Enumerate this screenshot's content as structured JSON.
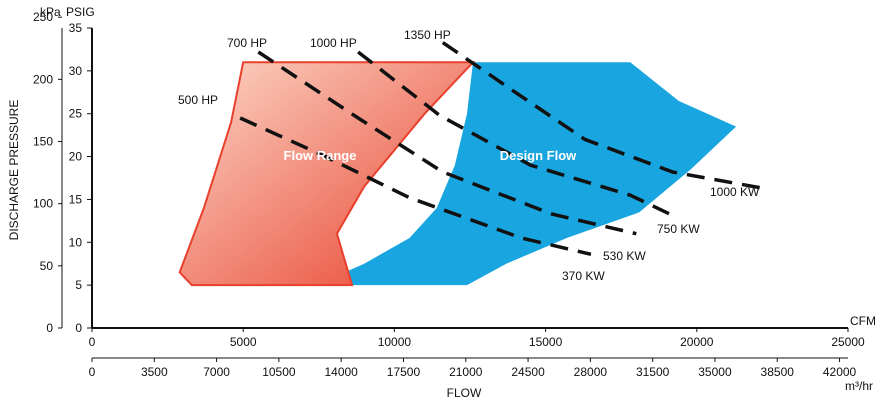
{
  "chart_data": {
    "type": "area",
    "title": "",
    "xlabel": "FLOW",
    "ylabel": "DISCHARGE PRESSURE",
    "x_units_primary": "CFM",
    "x_units_secondary": "m³/hr",
    "y_units_primary": "PSIG",
    "y_units_secondary": "kPa",
    "xlim": [
      0,
      25000
    ],
    "ylim": [
      0,
      35
    ],
    "x_ticks_cfm": [
      "0",
      "5000",
      "10000",
      "15000",
      "20000",
      "25000"
    ],
    "x_ticks_m3hr": [
      "0",
      "3500",
      "7000",
      "10500",
      "14000",
      "17500",
      "21000",
      "24500",
      "28000",
      "31500",
      "35000",
      "38500",
      "42000"
    ],
    "y_ticks_psig": [
      "0",
      "5",
      "10",
      "15",
      "20",
      "25",
      "30",
      "35"
    ],
    "y_ticks_kpa": [
      "0",
      "50",
      "100",
      "150",
      "200",
      "250"
    ],
    "grid": false,
    "regions": [
      {
        "label": "Flow Range",
        "color_light": "#fcd7c8",
        "color_dark": "#e8402c",
        "outline": [
          [
            5000,
            31
          ],
          [
            12600,
            31
          ],
          [
            11000,
            25
          ],
          [
            9000,
            16.5
          ],
          [
            8100,
            11
          ],
          [
            8600,
            5
          ],
          [
            3300,
            5
          ],
          [
            2900,
            6.5
          ],
          [
            3700,
            14
          ],
          [
            4600,
            24
          ],
          [
            5000,
            31
          ]
        ]
      },
      {
        "label": "Design Flow",
        "color": "#19a6e0",
        "outline": [
          [
            12600,
            31
          ],
          [
            17800,
            31
          ],
          [
            19400,
            26.5
          ],
          [
            21300,
            23.5
          ],
          [
            19800,
            18.5
          ],
          [
            18100,
            13.5
          ],
          [
            15700,
            10.5
          ],
          [
            13700,
            7.5
          ],
          [
            12400,
            5
          ],
          [
            7400,
            5
          ],
          [
            9000,
            7.5
          ],
          [
            10500,
            10.5
          ],
          [
            11400,
            14
          ],
          [
            12000,
            19
          ],
          [
            12400,
            25
          ],
          [
            12600,
            31
          ]
        ]
      }
    ],
    "series": [
      {
        "name": "500 HP",
        "x": [
          4900,
          7600,
          10500,
          14200,
          16500
        ],
        "y": [
          24.5,
          20.2,
          15.2,
          10.5,
          8.6
        ]
      },
      {
        "name": "700 HP",
        "x": [
          5500,
          8800,
          11600,
          15200,
          18000
        ],
        "y": [
          32.2,
          24.5,
          18.2,
          13.3,
          11.0
        ]
      },
      {
        "name": "1000 HP",
        "x": [
          8800,
          11500,
          14500,
          17800,
          19100
        ],
        "y": [
          32.2,
          24.8,
          19.0,
          15.5,
          13.3
        ]
      },
      {
        "name": "1350 HP",
        "x": [
          11600,
          14000,
          16300,
          19200,
          22200
        ],
        "y": [
          33.3,
          27.5,
          22.0,
          18.2,
          16.3
        ]
      }
    ],
    "kw_labels": [
      "1000 KW",
      "750 KW",
      "530 KW",
      "370 KW"
    ]
  }
}
